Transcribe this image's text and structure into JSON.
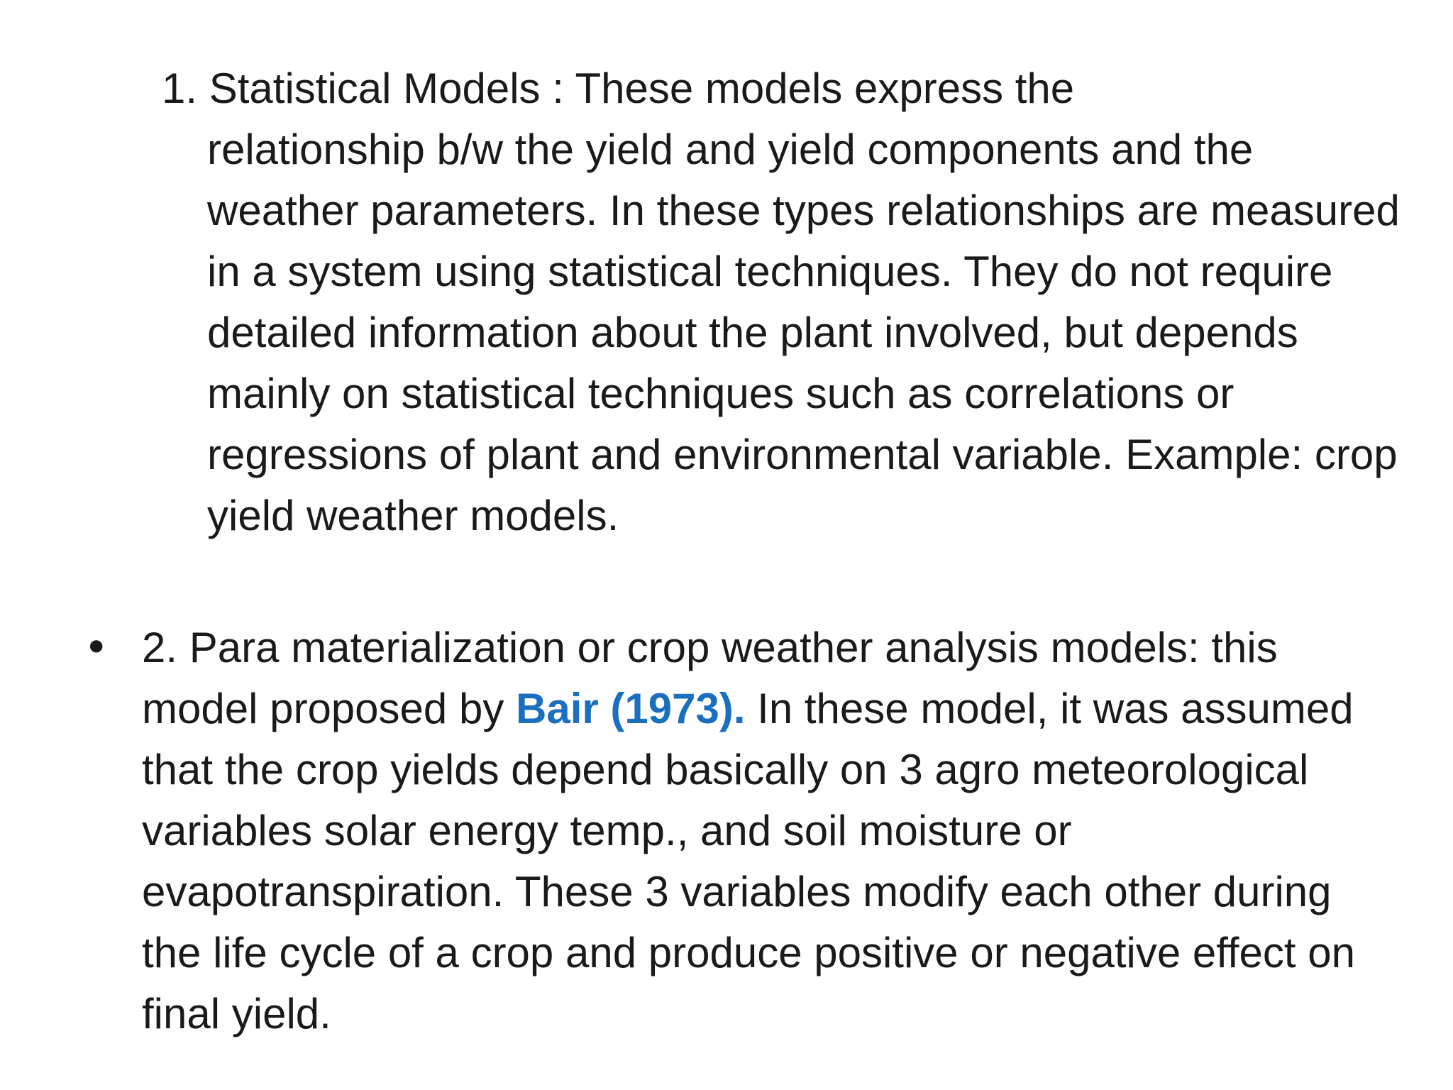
{
  "item1": {
    "first_line": "1. Statistical Models : These models express the",
    "continuation": "relationship b/w the yield and yield components and the weather parameters. In these types relationships are measured in a system using statistical techniques. They do not require detailed information about the plant involved, but depends mainly on statistical techniques such as correlations or regressions of plant and environmental variable. Example: crop yield weather models."
  },
  "item2": {
    "bullet": "•",
    "text_before": "2. Para materialization or crop weather analysis models: this model proposed by ",
    "citation": "Bair (1973).",
    "text_after": " In these model, it was assumed that the crop yields depend basically on 3 agro meteorological variables solar energy temp., and soil moisture or evapotranspiration. These 3 variables modify each other during the life cycle of a crop and produce positive or negative effect on final yield."
  },
  "colors": {
    "text": "#1a1a1a",
    "citation": "#1a6fbf",
    "background": "#ffffff"
  }
}
